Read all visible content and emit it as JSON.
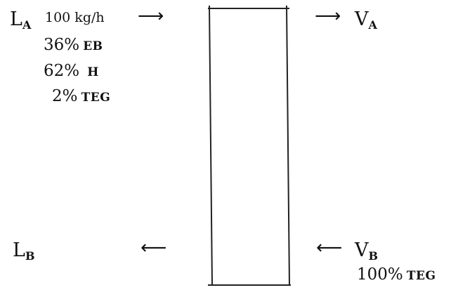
{
  "streams": {
    "LA": {
      "main": "L",
      "sub": "A"
    },
    "LB": {
      "main": "L",
      "sub": "B"
    },
    "VA": {
      "main": "V",
      "sub": "A"
    },
    "VB": {
      "main": "V",
      "sub": "B"
    }
  },
  "feed": {
    "flow": "100 kg/h",
    "components": [
      {
        "percent": "36%",
        "name": "EB"
      },
      {
        "percent": "62%",
        "name": "H"
      },
      {
        "percent": "2%",
        "name": "TEG"
      }
    ]
  },
  "solvent": {
    "component": {
      "percent": "100%",
      "name": "TEG"
    }
  },
  "arrows": {
    "right": "⟶",
    "left": "⟵"
  }
}
